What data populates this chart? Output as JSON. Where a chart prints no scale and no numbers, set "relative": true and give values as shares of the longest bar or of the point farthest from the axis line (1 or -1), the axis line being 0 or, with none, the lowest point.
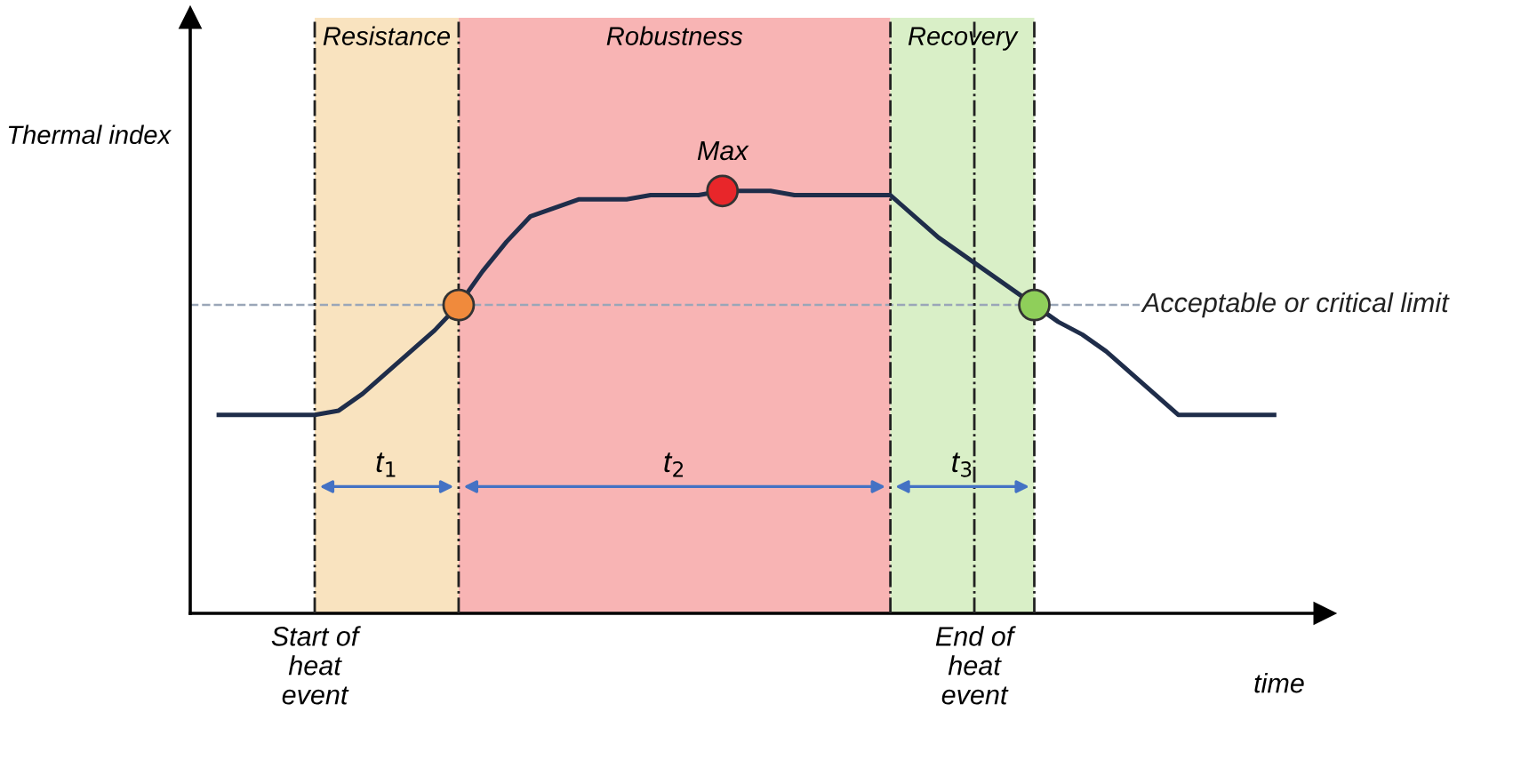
{
  "chart_data": {
    "type": "line",
    "relative": true,
    "xlabel": "time",
    "ylabel": "Thermal index",
    "categories": [
      null,
      null,
      null,
      null,
      null,
      null,
      null,
      null,
      null,
      null,
      null,
      null,
      null,
      null,
      null,
      null,
      null,
      null,
      null,
      null,
      null,
      null,
      null,
      null,
      null,
      null,
      null,
      null,
      null,
      null,
      null,
      null,
      null,
      null,
      null,
      null,
      null,
      null,
      null,
      null,
      null,
      null,
      null,
      null,
      null
    ],
    "series": [
      {
        "color": "#1f2d4a",
        "values": [
          0.47,
          0.47,
          0.47,
          0.47,
          0.47,
          0.48,
          0.52,
          0.57,
          0.62,
          0.67,
          0.73,
          0.81,
          0.88,
          0.94,
          0.96,
          0.98,
          0.98,
          0.98,
          0.99,
          0.99,
          0.99,
          1,
          1,
          1,
          0.99,
          0.99,
          0.99,
          0.99,
          0.99,
          0.94,
          0.89,
          0.85,
          0.81,
          0.77,
          0.73,
          0.69,
          0.66,
          0.62,
          0.57,
          0.52,
          0.47,
          0.47,
          0.47,
          0.47,
          0.47
        ]
      }
    ],
    "ref_lines": [
      {
        "axis": "y",
        "value": 0.73,
        "label": "Acceptable or critical limit",
        "color": "#9aa6b8",
        "line_style": "dashed"
      }
    ],
    "annotations": [
      "Max",
      "t$_{1}$",
      "t$_{2}$",
      "t$_{3}$",
      "Start of\nheat\nevent",
      "End of\nheat\nevent",
      "Resistance",
      "Robustness",
      "Recovery"
    ],
    "grid": "x",
    "legend": false
  }
}
